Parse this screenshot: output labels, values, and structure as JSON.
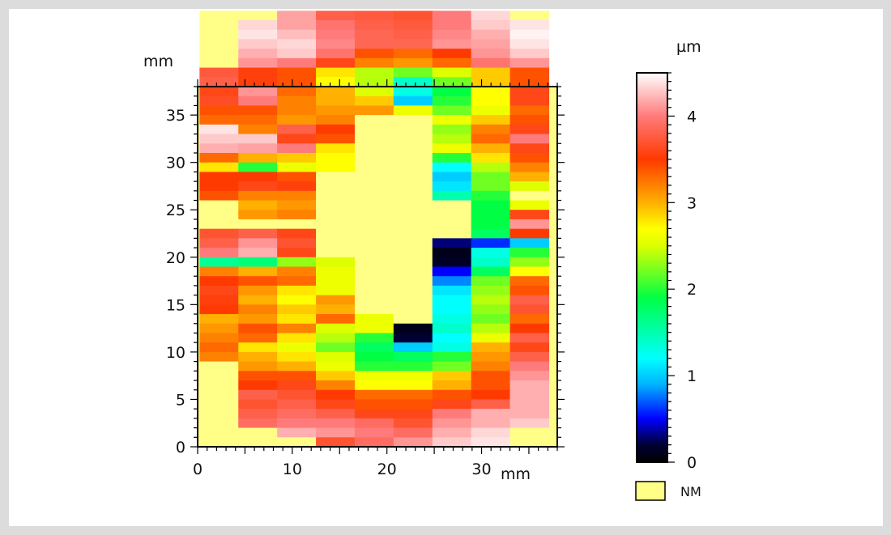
{
  "chart_data": {
    "type": "heatmap",
    "x_unit": "mm",
    "y_unit": "mm",
    "x_ticks": [
      0,
      10,
      20,
      30
    ],
    "y_ticks": [
      0,
      5,
      10,
      15,
      20,
      25,
      30,
      35
    ],
    "xlim": [
      0,
      38
    ],
    "ylim": [
      0,
      38
    ],
    "cell_width_mm": 4.1,
    "cell_height_mm": 1.0,
    "grid_origin_x_mm": 0.2,
    "grid_origin_y_mm": 0.0,
    "colorbar": {
      "unit": "µm",
      "ticks": [
        0,
        1,
        2,
        3,
        4
      ],
      "range": [
        0,
        4.5
      ],
      "stops": [
        {
          "v": 0.0,
          "color": "#000000"
        },
        {
          "v": 0.2,
          "color": "#000033"
        },
        {
          "v": 0.5,
          "color": "#0000ff"
        },
        {
          "v": 0.9,
          "color": "#00b4ff"
        },
        {
          "v": 1.2,
          "color": "#00ffff"
        },
        {
          "v": 1.9,
          "color": "#00ff44"
        },
        {
          "v": 2.5,
          "color": "#ddff00"
        },
        {
          "v": 2.7,
          "color": "#ffff00"
        },
        {
          "v": 3.0,
          "color": "#ffb000"
        },
        {
          "v": 3.5,
          "color": "#ff3a00"
        },
        {
          "v": 4.0,
          "color": "#ff7a7a"
        },
        {
          "v": 4.5,
          "color": "#ffffff"
        }
      ]
    },
    "legend": {
      "label": "NM",
      "color": "#ffff88"
    },
    "rows_top_to_bottom": [
      [
        null,
        null,
        4.15,
        3.8,
        3.75,
        3.7,
        4.0,
        4.35,
        null
      ],
      [
        null,
        4.35,
        4.15,
        3.95,
        3.8,
        3.75,
        4.0,
        4.3,
        4.4
      ],
      [
        null,
        4.4,
        4.25,
        4.0,
        3.85,
        3.8,
        4.05,
        4.2,
        4.45
      ],
      [
        null,
        4.3,
        4.35,
        4.05,
        3.85,
        3.85,
        4.1,
        4.15,
        4.4
      ],
      [
        null,
        4.2,
        4.3,
        3.95,
        3.4,
        3.3,
        3.5,
        4.1,
        4.3
      ],
      [
        null,
        4.1,
        4.0,
        3.6,
        3.2,
        3.1,
        3.3,
        3.95,
        4.1
      ],
      [
        3.75,
        3.55,
        3.4,
        2.8,
        2.4,
        2.2,
        2.5,
        2.9,
        3.4
      ],
      [
        3.8,
        3.55,
        3.4,
        2.7,
        2.4,
        1.4,
        2.2,
        2.9,
        3.4
      ],
      [
        3.6,
        4.1,
        3.3,
        3.0,
        2.5,
        1.3,
        1.9,
        2.7,
        3.6
      ],
      [
        3.65,
        4.0,
        3.2,
        3.0,
        2.9,
        1.0,
        2.0,
        2.7,
        3.6
      ],
      [
        3.4,
        3.4,
        3.2,
        3.1,
        3.1,
        2.6,
        2.2,
        2.6,
        3.3
      ],
      [
        3.3,
        3.3,
        3.1,
        3.2,
        null,
        null,
        2.6,
        2.9,
        3.4
      ],
      [
        4.4,
        3.2,
        3.8,
        3.5,
        null,
        null,
        2.3,
        3.2,
        3.6
      ],
      [
        4.3,
        4.3,
        3.6,
        3.4,
        null,
        null,
        2.4,
        3.3,
        4.0
      ],
      [
        4.2,
        4.15,
        4.0,
        2.8,
        null,
        null,
        2.6,
        3.0,
        3.6
      ],
      [
        3.3,
        3.0,
        2.9,
        2.7,
        null,
        null,
        2.0,
        2.8,
        3.4
      ],
      [
        2.8,
        2.0,
        2.6,
        2.7,
        null,
        null,
        1.2,
        2.4,
        3.2
      ],
      [
        3.5,
        3.5,
        3.4,
        null,
        null,
        null,
        1.0,
        2.2,
        3.0
      ],
      [
        3.5,
        3.6,
        3.55,
        null,
        null,
        null,
        1.1,
        2.2,
        2.5
      ],
      [
        3.4,
        3.2,
        3.2,
        null,
        null,
        null,
        1.5,
        2.0,
        null
      ],
      [
        null,
        3.0,
        3.1,
        null,
        null,
        null,
        null,
        1.9,
        2.6
      ],
      [
        null,
        3.1,
        3.2,
        null,
        null,
        null,
        null,
        1.9,
        3.6
      ],
      [
        null,
        null,
        null,
        null,
        null,
        null,
        null,
        1.9,
        4.1
      ],
      [
        3.7,
        3.8,
        3.6,
        null,
        null,
        null,
        null,
        1.8,
        3.5
      ],
      [
        3.8,
        4.1,
        3.7,
        null,
        null,
        null,
        0.3,
        0.6,
        1.0
      ],
      [
        4.0,
        4.2,
        3.6,
        null,
        null,
        null,
        0.1,
        1.3,
        2.0
      ],
      [
        1.6,
        1.7,
        2.3,
        2.5,
        null,
        null,
        0.15,
        1.4,
        2.3
      ],
      [
        3.2,
        3.0,
        3.2,
        2.6,
        null,
        null,
        0.5,
        1.8,
        2.7
      ],
      [
        3.5,
        3.4,
        3.3,
        2.6,
        null,
        null,
        0.8,
        2.2,
        3.3
      ],
      [
        3.6,
        3.1,
        2.8,
        2.6,
        null,
        null,
        1.1,
        2.3,
        3.4
      ],
      [
        3.55,
        3.0,
        2.7,
        3.1,
        null,
        null,
        1.2,
        2.4,
        3.8
      ],
      [
        3.5,
        3.2,
        2.9,
        3.0,
        null,
        null,
        1.2,
        2.3,
        3.7
      ],
      [
        3.0,
        3.1,
        2.8,
        3.3,
        2.6,
        null,
        1.3,
        2.2,
        3.3
      ],
      [
        3.1,
        3.4,
        3.2,
        2.5,
        2.6,
        0.1,
        1.4,
        2.4,
        3.5
      ],
      [
        3.2,
        3.3,
        2.8,
        2.4,
        2.0,
        0.2,
        1.2,
        2.6,
        3.8
      ],
      [
        3.3,
        2.8,
        2.6,
        2.2,
        1.8,
        1.0,
        1.3,
        3.0,
        3.6
      ],
      [
        3.2,
        3.0,
        2.8,
        2.5,
        1.9,
        1.8,
        2.0,
        3.1,
        3.8
      ],
      [
        null,
        3.1,
        3.0,
        2.6,
        2.0,
        2.0,
        2.2,
        3.2,
        4.0
      ],
      [
        null,
        3.4,
        3.4,
        2.9,
        2.6,
        2.6,
        2.9,
        3.4,
        4.1
      ],
      [
        null,
        3.5,
        3.6,
        3.2,
        2.7,
        2.7,
        3.0,
        3.4,
        4.2
      ],
      [
        null,
        3.8,
        3.7,
        3.5,
        3.3,
        3.3,
        3.4,
        3.5,
        4.2
      ],
      [
        null,
        3.7,
        3.8,
        3.6,
        3.4,
        3.4,
        3.6,
        3.8,
        4.2
      ],
      [
        null,
        3.8,
        3.9,
        3.8,
        3.6,
        3.6,
        4.0,
        4.2,
        4.2
      ],
      [
        null,
        3.9,
        4.0,
        4.0,
        3.9,
        3.7,
        4.1,
        4.2,
        4.3
      ],
      [
        null,
        null,
        4.2,
        4.1,
        4.0,
        3.9,
        4.2,
        4.35,
        null
      ],
      [
        null,
        null,
        null,
        3.7,
        3.9,
        4.1,
        4.3,
        4.4,
        null
      ]
    ]
  }
}
